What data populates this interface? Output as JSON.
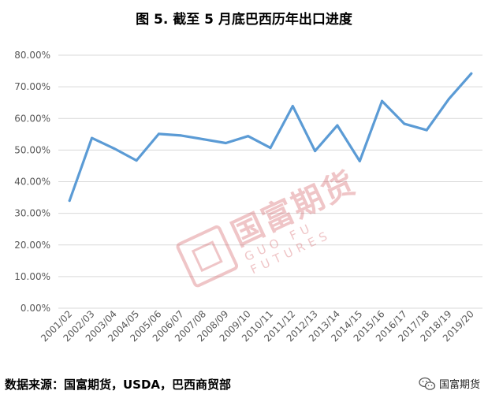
{
  "chart_data": {
    "type": "line",
    "title": "图 5. 截至 5 月底巴西历年出口进度",
    "categories": [
      "2001/02",
      "2002/03",
      "2003/04",
      "2004/05",
      "2005/06",
      "2006/07",
      "2007/08",
      "2008/09",
      "2009/10",
      "2010/11",
      "2011/12",
      "2012/13",
      "2013/14",
      "2014/15",
      "2015/16",
      "2016/17",
      "2017/18",
      "2018/19",
      "2019/20"
    ],
    "series": [
      {
        "values": [
          34.0,
          53.8,
          50.5,
          46.7,
          55.1,
          54.6,
          53.4,
          52.2,
          54.4,
          50.7,
          63.9,
          49.7,
          57.8,
          46.5,
          65.5,
          58.3,
          56.3,
          66.2,
          74.2
        ]
      }
    ],
    "yticks": [
      "0.00%",
      "10.00%",
      "20.00%",
      "30.00%",
      "40.00%",
      "50.00%",
      "60.00%",
      "70.00%",
      "80.00%"
    ],
    "ylim": [
      0,
      80
    ],
    "grid": true,
    "line_color": "#5b9bd5"
  },
  "footer": {
    "source": "数据来源：国富期货，USDA，巴西商贸部",
    "brand": "国富期货"
  },
  "watermark": {
    "cn": "国富期货",
    "en": "GUO FU FUTURES"
  }
}
